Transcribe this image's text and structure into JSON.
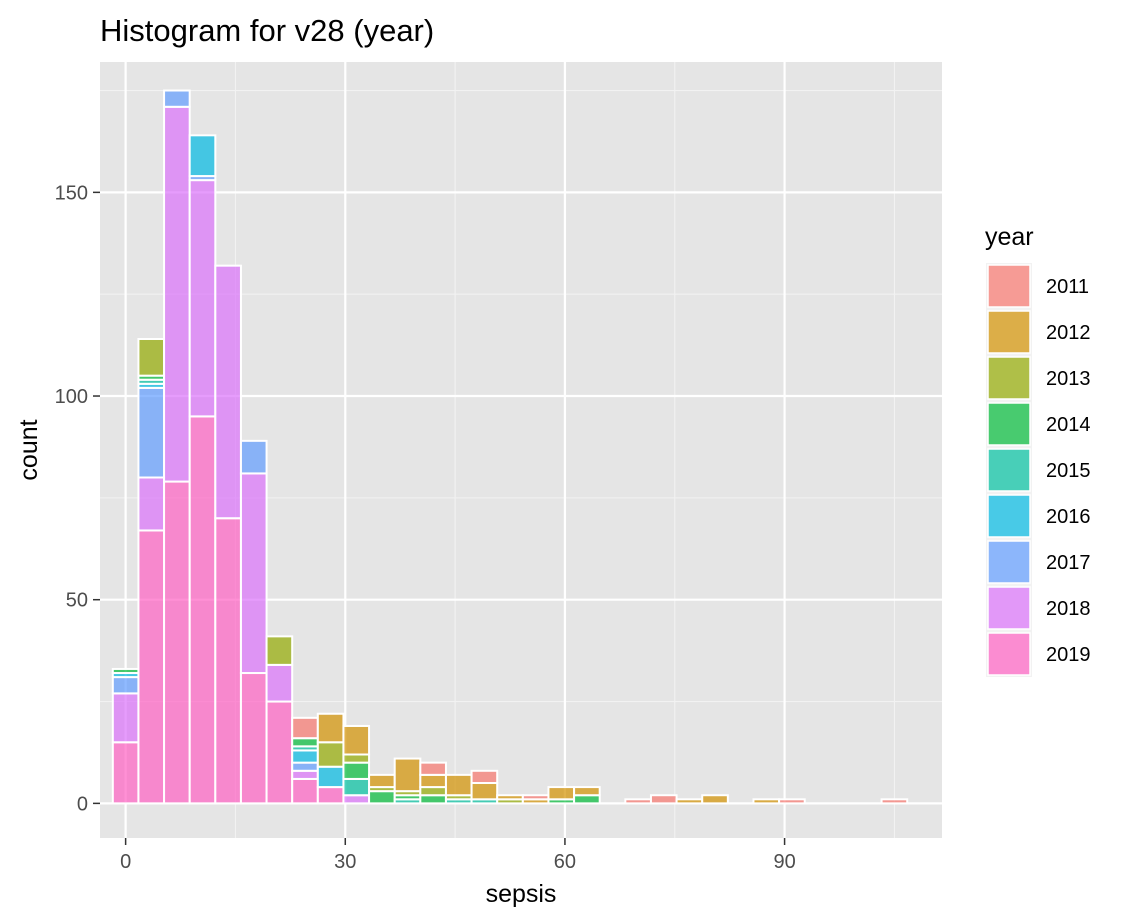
{
  "chart_data": {
    "type": "bar",
    "subtype": "stacked-histogram",
    "title": "Histogram for v28 (year)",
    "xlabel": "sepsis",
    "ylabel": "count",
    "xlim": [
      -3.5,
      111.5
    ],
    "ylim": [
      -8.5,
      182
    ],
    "x_ticks": [
      0,
      30,
      60,
      90
    ],
    "y_ticks": [
      0,
      50,
      100,
      150
    ],
    "grid": true,
    "legend_position": "right",
    "legend_title": "year",
    "bin_width": 3.5,
    "bin_centers": [
      0,
      3.5,
      7,
      10.5,
      14,
      17.5,
      21,
      24.5,
      28,
      31.5,
      35,
      38.5,
      42,
      45.5,
      49,
      52.5,
      56,
      59.5,
      63,
      66.5,
      70,
      73.5,
      77,
      80.5,
      84,
      87.5,
      91,
      94.5,
      98,
      101.5,
      105,
      108.5
    ],
    "series": [
      {
        "name": "2011",
        "color": "#F8766D",
        "values": [
          0,
          0,
          0,
          0,
          0,
          0,
          0,
          5,
          0,
          0,
          0,
          0,
          3,
          0,
          3,
          0,
          1,
          0,
          0,
          0,
          1,
          2,
          0,
          0,
          0,
          0,
          1,
          0,
          0,
          0,
          1,
          0
        ]
      },
      {
        "name": "2012",
        "color": "#D39200",
        "values": [
          0,
          0,
          0,
          0,
          0,
          0,
          0,
          0,
          7,
          7,
          3,
          8,
          3,
          5,
          4,
          1,
          1,
          3,
          2,
          0,
          0,
          0,
          1,
          2,
          0,
          1,
          0,
          0,
          0,
          0,
          0,
          0
        ]
      },
      {
        "name": "2013",
        "color": "#93AA00",
        "values": [
          0,
          9,
          0,
          0,
          0,
          0,
          7,
          0,
          6,
          2,
          1,
          1,
          2,
          1,
          0,
          1,
          0,
          0,
          0,
          0,
          0,
          0,
          0,
          0,
          0,
          0,
          0,
          0,
          0,
          0,
          0,
          0
        ]
      },
      {
        "name": "2014",
        "color": "#00BA38",
        "values": [
          1,
          1,
          0,
          0,
          0,
          0,
          0,
          2,
          0,
          4,
          3,
          1,
          2,
          0,
          0,
          0,
          0,
          1,
          2,
          0,
          0,
          0,
          0,
          0,
          0,
          0,
          0,
          0,
          0,
          0,
          0,
          0
        ]
      },
      {
        "name": "2015",
        "color": "#00C19F",
        "values": [
          0,
          1,
          0,
          0,
          0,
          0,
          0,
          1,
          0,
          4,
          0,
          1,
          0,
          1,
          1,
          0,
          0,
          0,
          0,
          0,
          0,
          0,
          0,
          0,
          0,
          0,
          0,
          0,
          0,
          0,
          0,
          0
        ]
      },
      {
        "name": "2016",
        "color": "#00B9E3",
        "values": [
          1,
          1,
          0,
          10,
          0,
          0,
          0,
          3,
          5,
          0,
          0,
          0,
          0,
          0,
          0,
          0,
          0,
          0,
          0,
          0,
          0,
          0,
          0,
          0,
          0,
          0,
          0,
          0,
          0,
          0,
          0,
          0
        ]
      },
      {
        "name": "2017",
        "color": "#619CFF",
        "values": [
          4,
          22,
          4,
          1,
          0,
          8,
          0,
          2,
          0,
          0,
          0,
          0,
          0,
          0,
          0,
          0,
          0,
          0,
          0,
          0,
          0,
          0,
          0,
          0,
          0,
          0,
          0,
          0,
          0,
          0,
          0,
          0
        ]
      },
      {
        "name": "2018",
        "color": "#DB72FB",
        "values": [
          12,
          13,
          92,
          58,
          62,
          49,
          9,
          2,
          0,
          2,
          0,
          0,
          0,
          0,
          0,
          0,
          0,
          0,
          0,
          0,
          0,
          0,
          0,
          0,
          0,
          0,
          0,
          0,
          0,
          0,
          0,
          0
        ]
      },
      {
        "name": "2019",
        "color": "#FF61C3",
        "values": [
          15,
          67,
          79,
          95,
          70,
          32,
          25,
          6,
          4,
          0,
          0,
          0,
          0,
          0,
          0,
          0,
          0,
          0,
          0,
          0,
          0,
          0,
          0,
          0,
          0,
          0,
          0,
          0,
          0,
          0,
          0,
          0
        ]
      }
    ]
  }
}
